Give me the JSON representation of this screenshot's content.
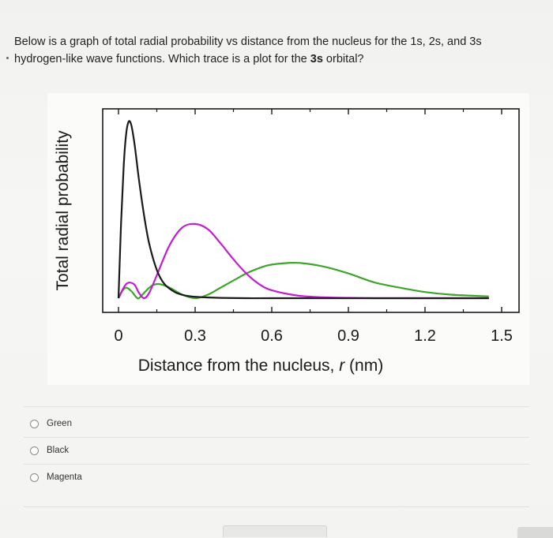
{
  "question": {
    "line1": "Below is a graph of total radial probability vs distance from the nucleus for the 1s, 2s, and 3s",
    "line2_prefix": "hydrogen-like wave functions.  Which trace is a plot for the ",
    "line2_bold": "3s",
    "line2_suffix": " orbital?"
  },
  "chart_data": {
    "type": "line",
    "title": "",
    "xlabel_prefix": "Distance from the nucleus, ",
    "xlabel_var": "r",
    "xlabel_suffix": " (nm)",
    "ylabel": "Total radial probability",
    "xlim": [
      0,
      1.5
    ],
    "ylim": [
      0,
      1.0
    ],
    "x_ticks": [
      "0",
      "0.3",
      "0.6",
      "0.9",
      "1.2",
      "1.5"
    ],
    "grid": false,
    "series": [
      {
        "color": "#1a1a1a",
        "x": [
          0,
          0.01,
          0.02,
          0.03,
          0.04,
          0.05,
          0.06,
          0.07,
          0.08,
          0.1,
          0.12,
          0.15,
          0.18,
          0.22,
          0.26,
          0.3,
          0.35,
          0.4,
          0.5,
          0.6,
          0.8,
          1.0,
          1.2,
          1.45
        ],
        "y": [
          0,
          0.42,
          0.74,
          0.93,
          1.0,
          0.98,
          0.9,
          0.79,
          0.67,
          0.47,
          0.31,
          0.16,
          0.08,
          0.035,
          0.015,
          0.008,
          0.004,
          0.002,
          0.0,
          0.0,
          0.0,
          0.0,
          0.0,
          0.0
        ]
      },
      {
        "color": "#c21ed0",
        "x": [
          0,
          0.03,
          0.06,
          0.08,
          0.1,
          0.12,
          0.15,
          0.2,
          0.25,
          0.3,
          0.35,
          0.4,
          0.45,
          0.5,
          0.55,
          0.6,
          0.7,
          0.8,
          0.9,
          1.0,
          1.2,
          1.45
        ],
        "y": [
          0,
          0.08,
          0.08,
          0.03,
          0.0,
          0.03,
          0.13,
          0.3,
          0.4,
          0.42,
          0.39,
          0.31,
          0.22,
          0.14,
          0.08,
          0.045,
          0.015,
          0.005,
          0.002,
          0.0,
          0.0,
          0.0
        ]
      },
      {
        "color": "#3da52a",
        "x": [
          0,
          0.015,
          0.03,
          0.05,
          0.07,
          0.08,
          0.1,
          0.13,
          0.16,
          0.2,
          0.25,
          0.3,
          0.35,
          0.4,
          0.45,
          0.5,
          0.55,
          0.6,
          0.7,
          0.8,
          0.9,
          1.0,
          1.1,
          1.2,
          1.3,
          1.45
        ],
        "y": [
          0,
          0.04,
          0.06,
          0.04,
          0.005,
          0.0,
          0.03,
          0.07,
          0.08,
          0.06,
          0.02,
          0.0,
          0.02,
          0.06,
          0.1,
          0.14,
          0.17,
          0.19,
          0.2,
          0.18,
          0.14,
          0.09,
          0.06,
          0.035,
          0.02,
          0.01
        ]
      }
    ]
  },
  "choices": [
    {
      "label": "Green"
    },
    {
      "label": "Black"
    },
    {
      "label": "Magenta"
    }
  ]
}
